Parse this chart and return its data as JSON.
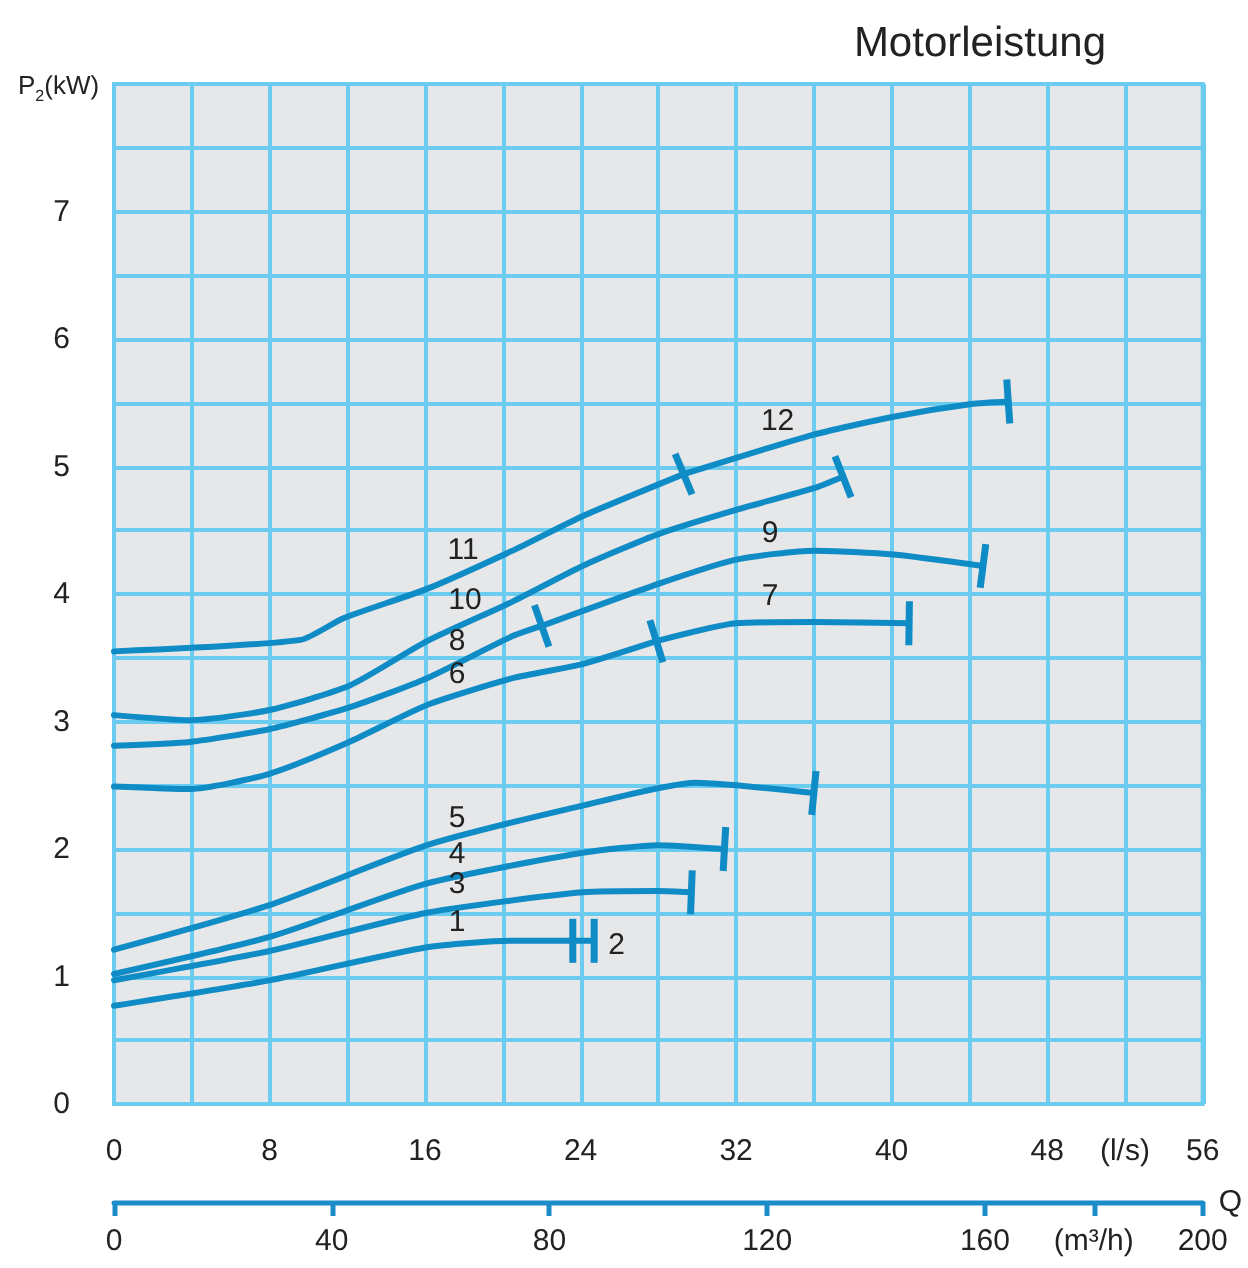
{
  "chart_data": {
    "type": "line",
    "title": "Motorleistung",
    "ylabel": "P$_{2}$(kW)",
    "xlabel": "Q",
    "xlim": [
      0,
      56
    ],
    "xticks": [
      0,
      {
        "value": 4,
        "label": null
      },
      8,
      {
        "value": 12,
        "label": null
      },
      16,
      {
        "value": 20,
        "label": null
      },
      24,
      {
        "value": 28,
        "label": null
      },
      32,
      {
        "value": 36,
        "label": null
      },
      40,
      {
        "value": 44,
        "label": null
      },
      48,
      {
        "value": 52,
        "label": "(l/s)"
      },
      56
    ],
    "x2lim": [
      0,
      200
    ],
    "x2ticks": [
      0,
      40,
      80,
      120,
      160,
      {
        "value": 180,
        "label": "(m³/h)"
      },
      200
    ],
    "ylim": [
      0,
      8
    ],
    "yticks": [
      0,
      {
        "value": 0.5,
        "label": null
      },
      1,
      {
        "value": 1.5,
        "label": null
      },
      2,
      {
        "value": 2.5,
        "label": null
      },
      3,
      {
        "value": 3.5,
        "label": null
      },
      4,
      {
        "value": 4.5,
        "label": null
      },
      5,
      {
        "value": 5.5,
        "label": null
      },
      6,
      {
        "value": 6.5,
        "label": null
      },
      7,
      {
        "value": 7.5,
        "label": null
      },
      {
        "value": 8,
        "label": null
      }
    ],
    "grid": true,
    "line_style": "solid",
    "series": [
      {
        "name": "1",
        "color": "#0f8bc6",
        "x": [
          0,
          8,
          16.1,
          20.5,
          23.6
        ],
        "values": [
          0.77,
          0.97,
          1.23,
          1.28,
          1.28
        ]
      },
      {
        "name": "2",
        "color": "#0f8bc6",
        "x": [
          23.6,
          24.7
        ],
        "values": [
          1.28,
          1.28
        ]
      },
      {
        "name": "3",
        "color": "#0f8bc6",
        "x": [
          0,
          8,
          16.1,
          24.1,
          28,
          29.7
        ],
        "values": [
          0.97,
          1.2,
          1.5,
          1.66,
          1.67,
          1.66
        ]
      },
      {
        "name": "4",
        "color": "#0f8bc6",
        "x": [
          0,
          8,
          16.1,
          24.1,
          28,
          31.4
        ],
        "values": [
          1.02,
          1.31,
          1.73,
          1.97,
          2.03,
          2.0
        ]
      },
      {
        "name": "5",
        "color": "#0f8bc6",
        "x": [
          0,
          8,
          16.1,
          24.1,
          29.9,
          32,
          36
        ],
        "values": [
          1.21,
          1.56,
          2.03,
          2.34,
          2.52,
          2.5,
          2.44
        ]
      },
      {
        "name": "6",
        "color": "#0f8bc6",
        "x": [
          0,
          3.9,
          8,
          12.1,
          16.1,
          20.5,
          24.1,
          27.9
        ],
        "values": [
          2.49,
          2.47,
          2.59,
          2.84,
          3.13,
          3.34,
          3.45,
          3.63
        ]
      },
      {
        "name": "7",
        "color": "#0f8bc6",
        "x": [
          27.9,
          32,
          36,
          40.9
        ],
        "values": [
          3.63,
          3.77,
          3.78,
          3.77
        ]
      },
      {
        "name": "8",
        "color": "#0f8bc6",
        "x": [
          0,
          3.9,
          8,
          12.1,
          16.1,
          20.5,
          22
        ],
        "values": [
          2.81,
          2.84,
          2.94,
          3.11,
          3.34,
          3.67,
          3.75
        ]
      },
      {
        "name": "9",
        "color": "#0f8bc6",
        "x": [
          22,
          28,
          32,
          36,
          40.1,
          44.7
        ],
        "values": [
          3.75,
          4.08,
          4.27,
          4.34,
          4.31,
          4.22
        ]
      },
      {
        "name": "10",
        "color": "#0f8bc6",
        "x": [
          0,
          3.9,
          8,
          12.1,
          16.1,
          20.5,
          24.1,
          28,
          32,
          36,
          37.5
        ],
        "values": [
          3.05,
          3.01,
          3.09,
          3.28,
          3.63,
          3.94,
          4.22,
          4.47,
          4.66,
          4.83,
          4.92
        ]
      },
      {
        "name": "11",
        "color": "#0f8bc6",
        "x": [
          0,
          9.6,
          11.8,
          16.1,
          20.5,
          24.1,
          29.3
        ],
        "values": [
          3.55,
          3.64,
          3.81,
          4.04,
          4.34,
          4.61,
          4.94
        ]
      },
      {
        "name": "12",
        "color": "#0f8bc6",
        "x": [
          29.3,
          36,
          40.1,
          44.1,
          46
        ],
        "values": [
          4.94,
          5.25,
          5.39,
          5.49,
          5.51
        ]
      }
    ]
  }
}
